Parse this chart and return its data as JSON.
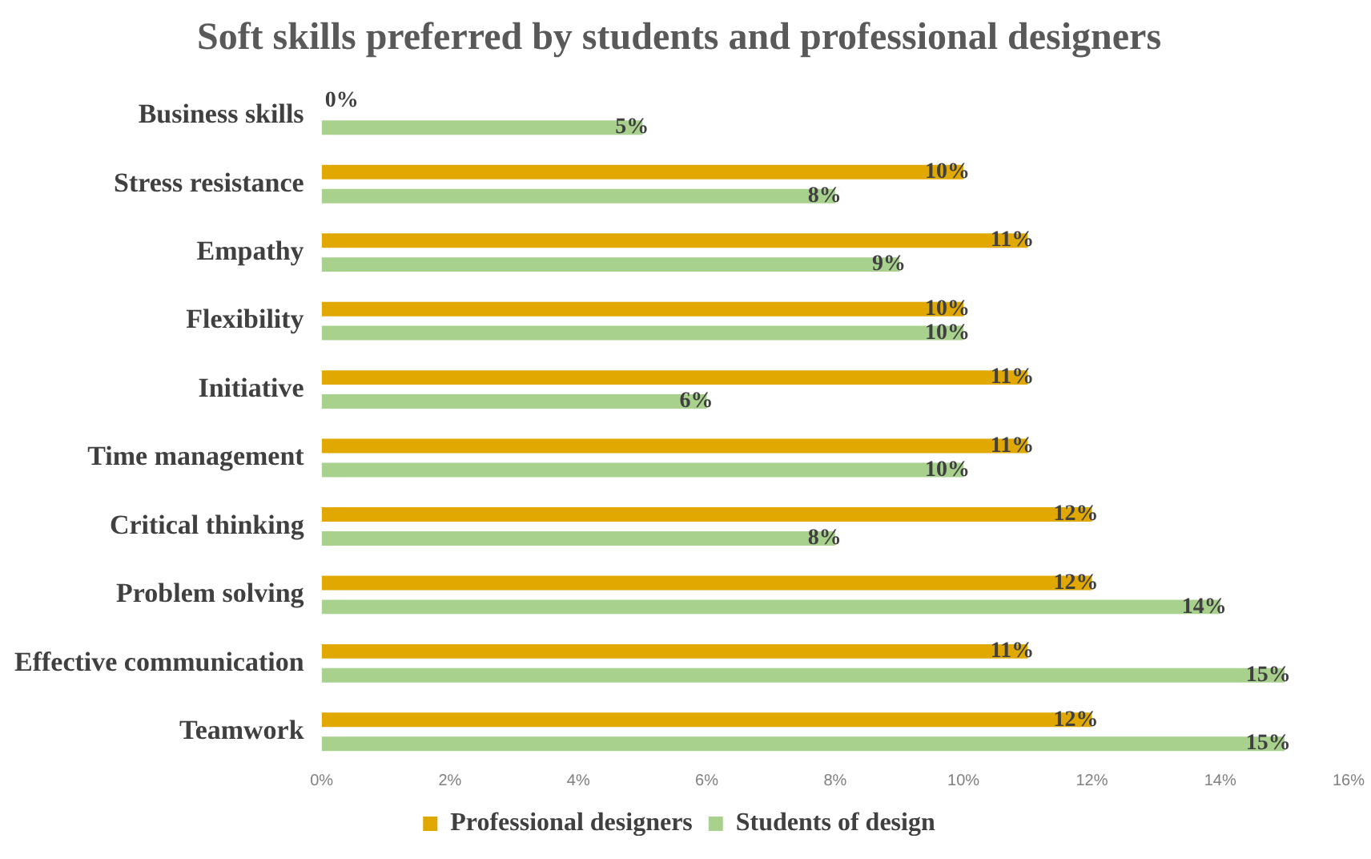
{
  "chart_data": {
    "type": "bar",
    "orientation": "horizontal",
    "title": "Soft skills preferred by students and professional designers",
    "categories": [
      "Business skills",
      "Stress resistance",
      "Empathy",
      "Flexibility",
      "Initiative",
      "Time management",
      "Critical thinking",
      "Problem solving",
      "Effective communication",
      "Teamwork"
    ],
    "series": [
      {
        "name": "Professional designers",
        "color": "#e0a800",
        "values": [
          0,
          10,
          11,
          10,
          11,
          11,
          12,
          12,
          11,
          12
        ],
        "value_labels": [
          "0%",
          "10%",
          "11%",
          "10%",
          "11%",
          "11%",
          "12%",
          "12%",
          "11%",
          "12%"
        ]
      },
      {
        "name": "Students of design",
        "color": "#a9d18e",
        "values": [
          5,
          8,
          9,
          10,
          6,
          10,
          8,
          14,
          15,
          15
        ],
        "value_labels": [
          "5%",
          "8%",
          "9%",
          "10%",
          "6%",
          "10%",
          "8%",
          "14%",
          "15%",
          "15%"
        ]
      }
    ],
    "xlim": [
      0,
      16
    ],
    "xticks": [
      {
        "value": 0,
        "label": "0%"
      },
      {
        "value": 2,
        "label": "2%"
      },
      {
        "value": 4,
        "label": "4%"
      },
      {
        "value": 6,
        "label": "6%"
      },
      {
        "value": 8,
        "label": "8%"
      },
      {
        "value": 10,
        "label": "10%"
      },
      {
        "value": 12,
        "label": "12%"
      },
      {
        "value": 14,
        "label": "14%"
      },
      {
        "value": 16,
        "label": "16%"
      }
    ],
    "grid": false,
    "legend": "bottom"
  }
}
